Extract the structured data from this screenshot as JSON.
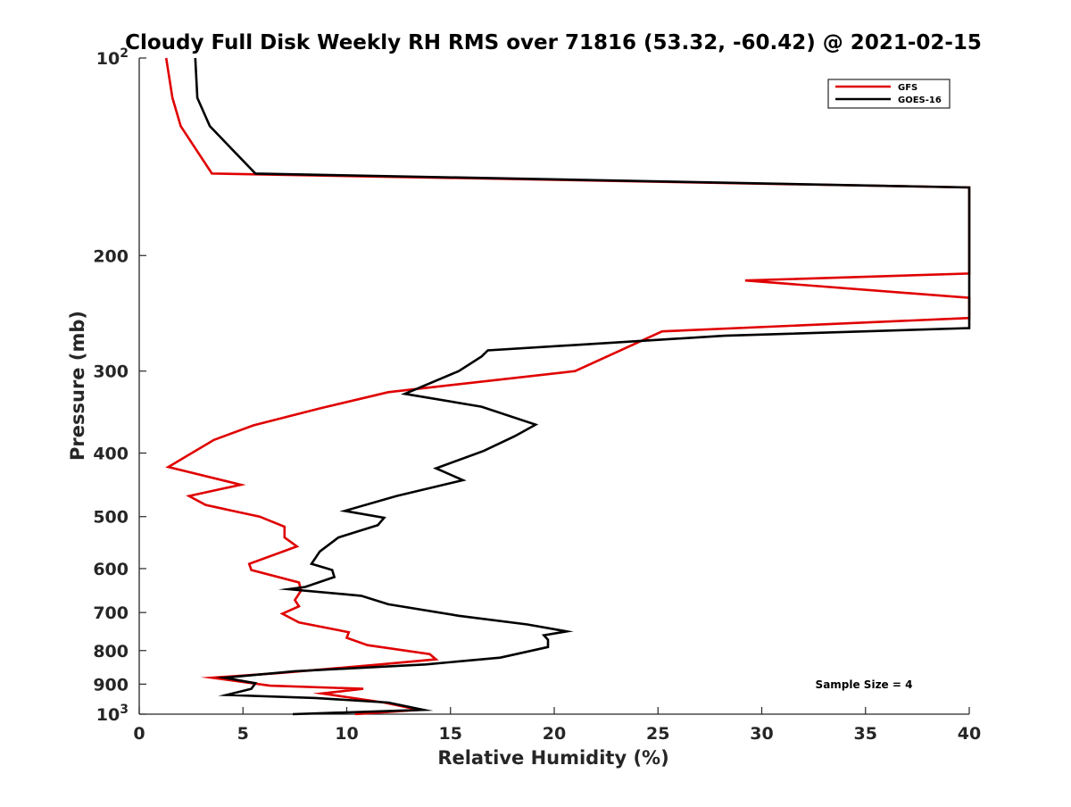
{
  "chart_data": {
    "type": "line",
    "title": "Cloudy Full Disk Weekly RH RMS over 71816 (53.32, -60.42) @ 2021-02-15",
    "xlabel": "Relative Humidity (%)",
    "ylabel": "Pressure (mb)",
    "xlim": [
      0,
      40
    ],
    "ylim": [
      100,
      1000
    ],
    "y_scale": "log",
    "y_reversed": true,
    "grid": false,
    "legend_position": "top-right",
    "x_ticks": [
      0,
      5,
      10,
      15,
      20,
      25,
      30,
      35,
      40
    ],
    "x_tick_labels": [
      "0",
      "5",
      "10",
      "15",
      "20",
      "25",
      "30",
      "35",
      "40"
    ],
    "y_ticks": [
      {
        "value": 100,
        "base": "10",
        "exp": "2"
      },
      {
        "value": 200,
        "label": "200"
      },
      {
        "value": 300,
        "label": "300"
      },
      {
        "value": 400,
        "label": "400"
      },
      {
        "value": 500,
        "label": "500"
      },
      {
        "value": 600,
        "label": "600"
      },
      {
        "value": 700,
        "label": "700"
      },
      {
        "value": 800,
        "label": "800"
      },
      {
        "value": 900,
        "label": "900"
      },
      {
        "value": 1000,
        "base": "10",
        "exp": "3"
      }
    ],
    "annotation": "Sample Size = 4",
    "series": [
      {
        "name": "GFS",
        "color": "#e00000",
        "points": [
          [
            1.3,
            100
          ],
          [
            1.6,
            115
          ],
          [
            2.0,
            127
          ],
          [
            3.5,
            150
          ],
          [
            40,
            157.5
          ],
          [
            40,
            213
          ],
          [
            29.2,
            218.3
          ],
          [
            40,
            232
          ],
          [
            40,
            249
          ],
          [
            25.2,
            261
          ],
          [
            21.0,
            300
          ],
          [
            12.0,
            323
          ],
          [
            8.7,
            342
          ],
          [
            5.5,
            363
          ],
          [
            3.6,
            382
          ],
          [
            1.4,
            420
          ],
          [
            4.9,
            447
          ],
          [
            2.4,
            465
          ],
          [
            3.2,
            480
          ],
          [
            5.8,
            500
          ],
          [
            7.0,
            518
          ],
          [
            7.0,
            538
          ],
          [
            7.6,
            555
          ],
          [
            5.3,
            590
          ],
          [
            5.4,
            603
          ],
          [
            7.7,
            630
          ],
          [
            7.8,
            648
          ],
          [
            7.5,
            670
          ],
          [
            7.7,
            685
          ],
          [
            6.9,
            703
          ],
          [
            7.7,
            725
          ],
          [
            10.1,
            750
          ],
          [
            10.0,
            765
          ],
          [
            11.0,
            785
          ],
          [
            14.0,
            810
          ],
          [
            14.3,
            825
          ],
          [
            11.6,
            840
          ],
          [
            6.9,
            865
          ],
          [
            3.5,
            880
          ],
          [
            6.3,
            905
          ],
          [
            10.8,
            915
          ],
          [
            8.8,
            930
          ],
          [
            11.8,
            960
          ],
          [
            13.5,
            985
          ],
          [
            10.4,
            1000
          ]
        ]
      },
      {
        "name": "GOES-16",
        "color": "#000000",
        "points": [
          [
            2.7,
            100
          ],
          [
            2.8,
            115
          ],
          [
            3.4,
            127
          ],
          [
            5.6,
            150
          ],
          [
            40,
            157.5
          ],
          [
            40,
            258
          ],
          [
            28.2,
            265
          ],
          [
            16.8,
            279
          ],
          [
            16.5,
            285
          ],
          [
            15.4,
            300
          ],
          [
            12.8,
            325
          ],
          [
            16.5,
            340
          ],
          [
            19.1,
            362
          ],
          [
            18.1,
            377
          ],
          [
            16.6,
            397
          ],
          [
            14.3,
            422
          ],
          [
            15.6,
            440
          ],
          [
            12.4,
            465
          ],
          [
            9.9,
            490
          ],
          [
            11.8,
            502
          ],
          [
            11.5,
            515
          ],
          [
            9.6,
            538
          ],
          [
            8.7,
            565
          ],
          [
            8.3,
            590
          ],
          [
            9.3,
            603
          ],
          [
            9.4,
            618
          ],
          [
            8.0,
            640
          ],
          [
            7.2,
            645
          ],
          [
            10.7,
            660
          ],
          [
            12.0,
            680
          ],
          [
            15.4,
            708
          ],
          [
            18.7,
            730
          ],
          [
            20.6,
            748
          ],
          [
            19.5,
            758
          ],
          [
            19.7,
            770
          ],
          [
            19.7,
            790
          ],
          [
            17.4,
            820
          ],
          [
            13.8,
            840
          ],
          [
            7.5,
            860
          ],
          [
            4.1,
            880
          ],
          [
            5.6,
            897
          ],
          [
            5.4,
            915
          ],
          [
            4.2,
            935
          ],
          [
            8.5,
            945
          ],
          [
            12.0,
            960
          ],
          [
            13.7,
            985
          ],
          [
            7.4,
            1000
          ]
        ]
      }
    ]
  }
}
